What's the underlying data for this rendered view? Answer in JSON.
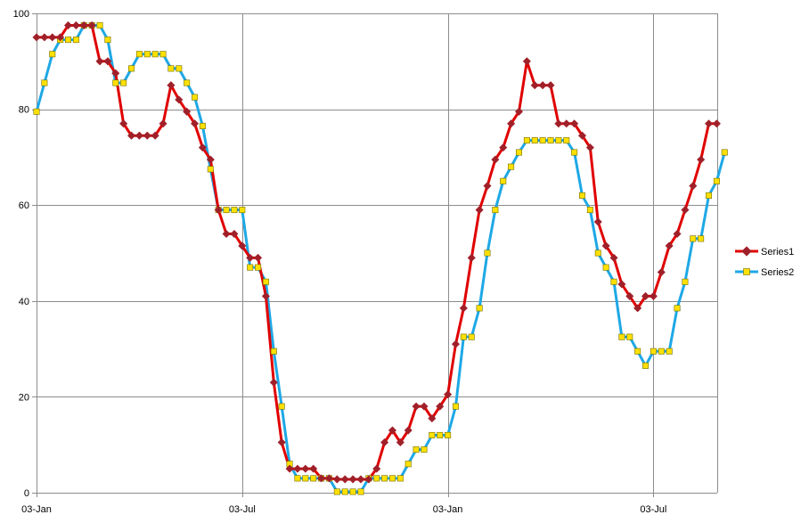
{
  "chart_data": {
    "type": "line",
    "title": "",
    "xlabel": "",
    "ylabel": "",
    "x_tick_labels": [
      "03-Jan",
      "03-Jul",
      "03-Jan",
      "03-Jul"
    ],
    "x_tick_weeks": [
      0,
      26,
      52,
      78
    ],
    "x_unit": "weeks from first point",
    "ylim": [
      0,
      100
    ],
    "y_ticks": [
      0,
      20,
      40,
      60,
      80,
      100
    ],
    "grid": true,
    "legend_position": "right",
    "series": [
      {
        "name": "Series1",
        "color": "#e00000",
        "marker": "diamond",
        "marker_color": "#a0202a",
        "values": [
          95,
          95,
          95,
          95,
          97.5,
          97.5,
          97.5,
          97.5,
          90,
          90,
          87.5,
          77,
          74.5,
          74.5,
          74.5,
          74.5,
          77,
          85,
          82,
          79.5,
          77,
          72,
          69.5,
          59,
          54,
          54,
          51.5,
          49,
          49,
          41,
          23,
          10.5,
          5,
          5,
          5,
          5,
          3,
          3,
          2.8,
          2.8,
          2.8,
          2.8,
          2.8,
          5,
          10.5,
          13,
          10.5,
          13,
          18,
          18,
          15.5,
          18,
          20.5,
          31,
          38.5,
          49,
          59,
          64,
          69.5,
          72,
          77,
          79.5,
          90,
          85,
          85,
          85,
          77,
          77,
          77,
          74.5,
          72,
          56.5,
          51.5,
          49,
          43.5,
          41,
          38.5,
          41,
          41,
          46,
          51.5,
          54,
          59,
          64,
          69.5,
          77,
          77
        ]
      },
      {
        "name": "Series2",
        "color": "#1ea8e6",
        "marker": "square",
        "marker_color": "#ffe000",
        "values": [
          79.5,
          85.5,
          91.5,
          94.5,
          94.5,
          94.5,
          97.5,
          97.5,
          97.5,
          94.5,
          85.5,
          85.5,
          88.5,
          91.5,
          91.5,
          91.5,
          91.5,
          88.5,
          88.5,
          85.5,
          82.5,
          76.5,
          67.5,
          59,
          59,
          59,
          59,
          47,
          47,
          44,
          29.5,
          18,
          6,
          3,
          3,
          3,
          3,
          3,
          0.2,
          0.2,
          0.2,
          0.2,
          3,
          3,
          3,
          3,
          3,
          6,
          9,
          9,
          12,
          12,
          12,
          18,
          32.5,
          32.5,
          38.5,
          50,
          59,
          65,
          68,
          71,
          73.5,
          73.5,
          73.5,
          73.5,
          73.5,
          73.5,
          71,
          62,
          59,
          50,
          47,
          44,
          32.5,
          32.5,
          29.5,
          26.5,
          29.5,
          29.5,
          29.5,
          38.5,
          44,
          53,
          53,
          62,
          65,
          71
        ]
      }
    ]
  }
}
